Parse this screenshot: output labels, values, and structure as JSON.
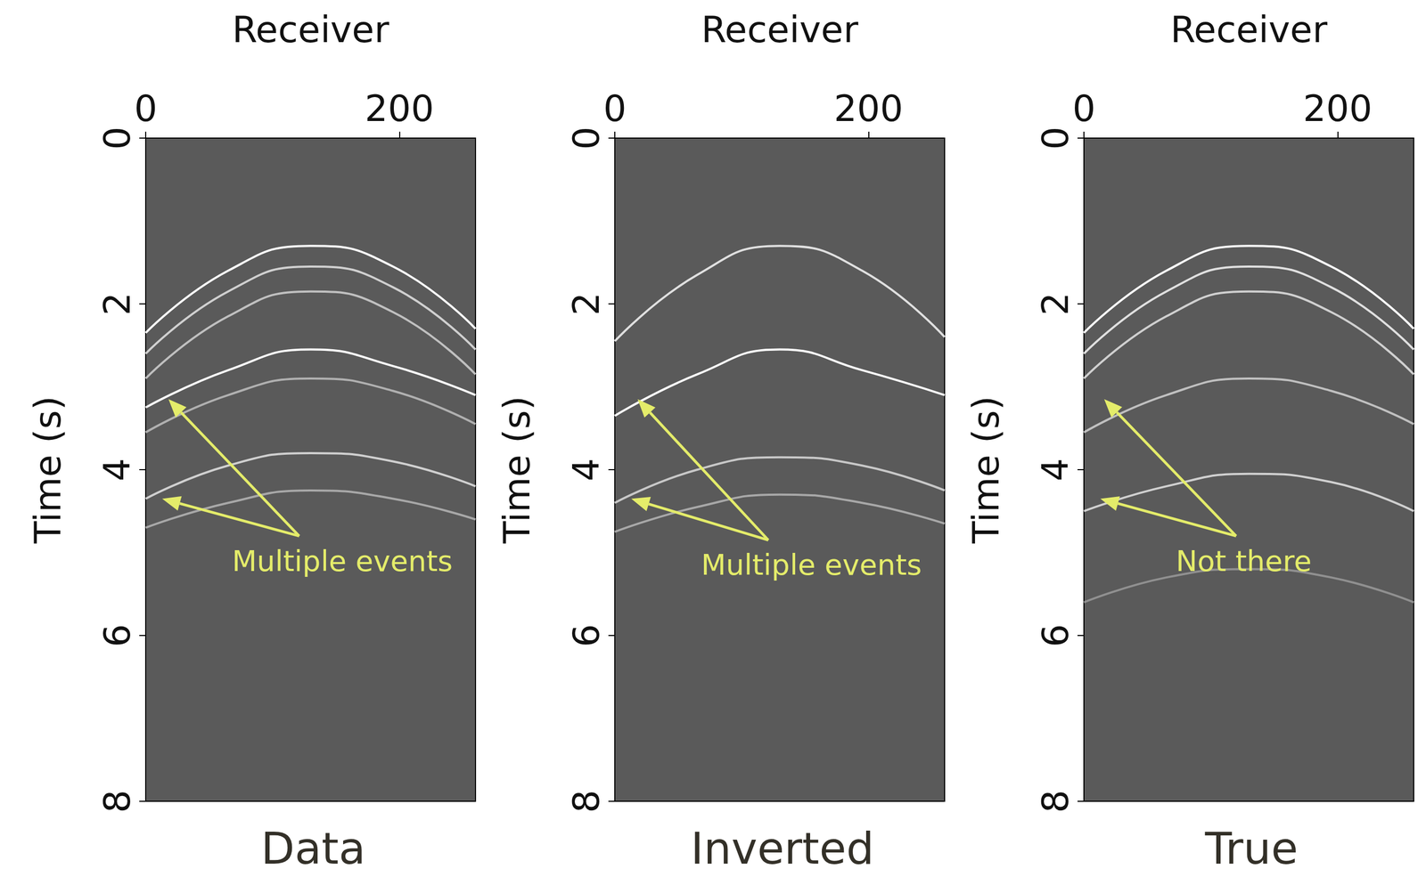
{
  "chart_data": [
    {
      "type": "line",
      "title": "Data",
      "xlabel": "Receiver",
      "ylabel": "Time (s)",
      "xlim": [
        0,
        260
      ],
      "xticks": [
        0,
        200
      ],
      "ylim": [
        0,
        8
      ],
      "yticks": [
        0,
        2,
        4,
        6,
        8
      ],
      "x": [
        0,
        65,
        130,
        195,
        260
      ],
      "series": [
        {
          "values": [
            2.35,
            1.6,
            1.3,
            1.55,
            2.3
          ],
          "color": "#ffffff"
        },
        {
          "values": [
            2.6,
            1.85,
            1.55,
            1.8,
            2.55
          ],
          "color": "#d0d0d0"
        },
        {
          "values": [
            2.9,
            2.15,
            1.85,
            2.1,
            2.85
          ],
          "color": "#c0c0c0"
        },
        {
          "values": [
            3.25,
            2.8,
            2.55,
            2.75,
            3.1
          ],
          "color": "#ffffff"
        },
        {
          "values": [
            3.55,
            3.1,
            2.9,
            3.05,
            3.45
          ],
          "color": "#b0b0b0"
        },
        {
          "values": [
            4.35,
            3.95,
            3.8,
            3.9,
            4.2
          ],
          "color": "#d0d0d0"
        },
        {
          "values": [
            4.7,
            4.4,
            4.25,
            4.35,
            4.6
          ],
          "color": "#a8a8a8"
        }
      ],
      "annotations": [
        {
          "text": "Multiple events",
          "x": 155,
          "y": 5.1,
          "arrows": [
            {
              "from": [
                121,
                4.8
              ],
              "to": [
                18,
                3.15
              ]
            },
            {
              "from": [
                121,
                4.8
              ],
              "to": [
                13,
                4.35
              ]
            }
          ]
        }
      ]
    },
    {
      "type": "line",
      "title": "Inverted",
      "xlabel": "Receiver",
      "ylabel": "Time (s)",
      "xlim": [
        0,
        260
      ],
      "xticks": [
        0,
        200
      ],
      "ylim": [
        0,
        8
      ],
      "yticks": [
        0,
        2,
        4,
        6,
        8
      ],
      "x": [
        0,
        65,
        130,
        195,
        260
      ],
      "series": [
        {
          "values": [
            2.45,
            1.65,
            1.3,
            1.6,
            2.4
          ],
          "color": "#e0e0e0"
        },
        {
          "values": [
            3.35,
            2.85,
            2.55,
            2.8,
            3.1
          ],
          "color": "#ffffff"
        },
        {
          "values": [
            4.4,
            4.0,
            3.85,
            3.95,
            4.25
          ],
          "color": "#c8c8c8"
        },
        {
          "values": [
            4.75,
            4.45,
            4.3,
            4.4,
            4.65
          ],
          "color": "#a8a8a8"
        }
      ],
      "annotations": [
        {
          "text": "Multiple events",
          "x": 155,
          "y": 5.15,
          "arrows": [
            {
              "from": [
                121,
                4.85
              ],
              "to": [
                18,
                3.15
              ]
            },
            {
              "from": [
                121,
                4.85
              ],
              "to": [
                13,
                4.35
              ]
            }
          ]
        }
      ]
    },
    {
      "type": "line",
      "title": "True",
      "xlabel": "Receiver",
      "ylabel": "Time (s)",
      "xlim": [
        0,
        260
      ],
      "xticks": [
        0,
        200
      ],
      "ylim": [
        0,
        8
      ],
      "yticks": [
        0,
        2,
        4,
        6,
        8
      ],
      "x": [
        0,
        65,
        130,
        195,
        260
      ],
      "series": [
        {
          "values": [
            2.35,
            1.6,
            1.3,
            1.55,
            2.3
          ],
          "color": "#ffffff"
        },
        {
          "values": [
            2.6,
            1.85,
            1.55,
            1.8,
            2.55
          ],
          "color": "#e0e0e0"
        },
        {
          "values": [
            2.9,
            2.15,
            1.85,
            2.1,
            2.85
          ],
          "color": "#d0d0d0"
        },
        {
          "values": [
            3.55,
            3.1,
            2.9,
            3.05,
            3.45
          ],
          "color": "#c0c0c0"
        },
        {
          "values": [
            4.5,
            4.2,
            4.05,
            4.15,
            4.5
          ],
          "color": "#d0d0d0"
        },
        {
          "values": [
            5.6,
            5.3,
            5.2,
            5.3,
            5.6
          ],
          "color": "#909090"
        }
      ],
      "annotations": [
        {
          "text": "Not there",
          "x": 126,
          "y": 5.1,
          "arrows": [
            {
              "from": [
                120,
                4.8
              ],
              "to": [
                16,
                3.15
              ]
            },
            {
              "from": [
                120,
                4.8
              ],
              "to": [
                13,
                4.35
              ]
            }
          ]
        }
      ]
    }
  ]
}
